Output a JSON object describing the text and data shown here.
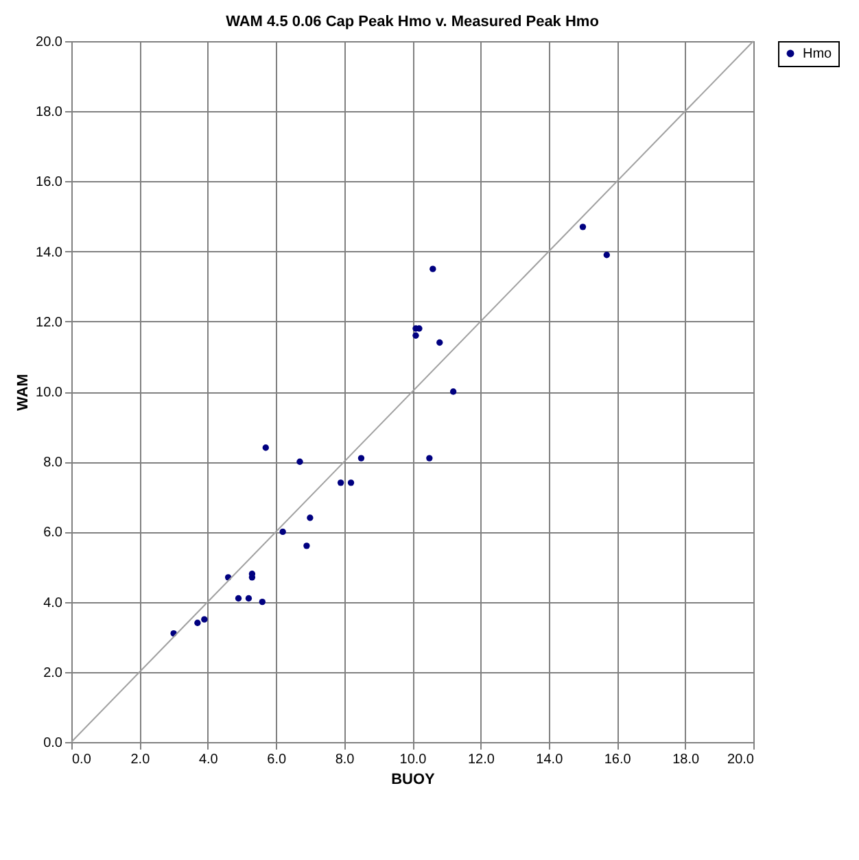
{
  "chart_data": {
    "type": "scatter",
    "title": "WAM 4.5 0.06 Cap Peak Hmo v. Measured Peak Hmo",
    "xlabel": "BUOY",
    "ylabel": "WAM",
    "x": [
      3.0,
      3.7,
      3.9,
      4.6,
      4.9,
      5.2,
      5.3,
      5.3,
      5.6,
      5.7,
      6.2,
      6.7,
      6.9,
      7.0,
      7.9,
      8.2,
      8.5,
      10.1,
      10.1,
      10.2,
      10.5,
      10.6,
      10.8,
      11.2,
      15.0,
      15.7
    ],
    "series": [
      {
        "name": "Hmo",
        "color": "#000080",
        "marker": "circle",
        "values": [
          3.1,
          3.4,
          3.5,
          4.7,
          4.1,
          4.1,
          4.8,
          4.7,
          4.0,
          8.4,
          6.0,
          8.0,
          5.6,
          6.4,
          7.4,
          7.4,
          8.1,
          11.6,
          11.8,
          11.8,
          8.1,
          13.5,
          11.4,
          10.0,
          14.7,
          13.9
        ]
      },
      {
        "type": "line",
        "marker": "none",
        "color": "#a0a0a0",
        "x": [
          0,
          20
        ],
        "values": [
          0,
          20
        ]
      }
    ],
    "xlim": [
      0,
      20
    ],
    "ylim": [
      0,
      20
    ],
    "xticks": [
      {
        "value": 0,
        "label": "0.0"
      },
      {
        "value": 2,
        "label": "2.0"
      },
      {
        "value": 4,
        "label": "4.0"
      },
      {
        "value": 6,
        "label": "6.0"
      },
      {
        "value": 8,
        "label": "8.0"
      },
      {
        "value": 10,
        "label": "10.0"
      },
      {
        "value": 12,
        "label": "12.0"
      },
      {
        "value": 14,
        "label": "14.0"
      },
      {
        "value": 16,
        "label": "16.0"
      },
      {
        "value": 18,
        "label": "18.0"
      },
      {
        "value": 20,
        "label": "20.0"
      }
    ],
    "yticks": [
      {
        "value": 0,
        "label": "0.0"
      },
      {
        "value": 2,
        "label": "2.0"
      },
      {
        "value": 4,
        "label": "4.0"
      },
      {
        "value": 6,
        "label": "6.0"
      },
      {
        "value": 8,
        "label": "8.0"
      },
      {
        "value": 10,
        "label": "10.0"
      },
      {
        "value": 12,
        "label": "12.0"
      },
      {
        "value": 14,
        "label": "14.0"
      },
      {
        "value": 16,
        "label": "16.0"
      },
      {
        "value": 18,
        "label": "18.0"
      },
      {
        "value": 20,
        "label": "20.0"
      }
    ],
    "grid": true,
    "legend": "right"
  }
}
